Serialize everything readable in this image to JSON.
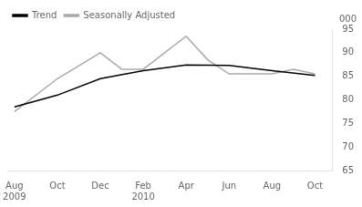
{
  "chart_data": {
    "type": "line",
    "series": [
      {
        "name": "Trend",
        "color": "#000000",
        "x": [
          0,
          2,
          4,
          6,
          8,
          10,
          12,
          14
        ],
        "values": [
          78.5,
          81.0,
          84.5,
          86.2,
          87.4,
          87.3,
          86.2,
          85.2
        ]
      },
      {
        "name": "Seasonally Adjusted",
        "color": "#aaaaaa",
        "x": [
          0,
          2,
          4,
          5,
          6,
          8,
          9,
          10,
          12,
          13,
          14
        ],
        "values": [
          77.5,
          84.5,
          90.0,
          86.5,
          86.5,
          93.5,
          88.5,
          85.5,
          85.5,
          86.5,
          85.5
        ]
      }
    ],
    "xlim": [
      -0.3,
      14.8
    ],
    "xticks": [
      {
        "value": 0,
        "label": "Aug\n2009"
      },
      {
        "value": 2,
        "label": "Oct"
      },
      {
        "value": 4,
        "label": "Dec"
      },
      {
        "value": 6,
        "label": "Feb\n2010"
      },
      {
        "value": 8,
        "label": "Apr"
      },
      {
        "value": 10,
        "label": "Jun"
      },
      {
        "value": 12,
        "label": "Aug"
      },
      {
        "value": 14,
        "label": "Oct"
      }
    ],
    "ylim": [
      65,
      95
    ],
    "yticks": [
      65,
      70,
      75,
      80,
      85,
      90,
      95
    ],
    "ylabel": "000",
    "legend": "upper left",
    "grid": false
  }
}
